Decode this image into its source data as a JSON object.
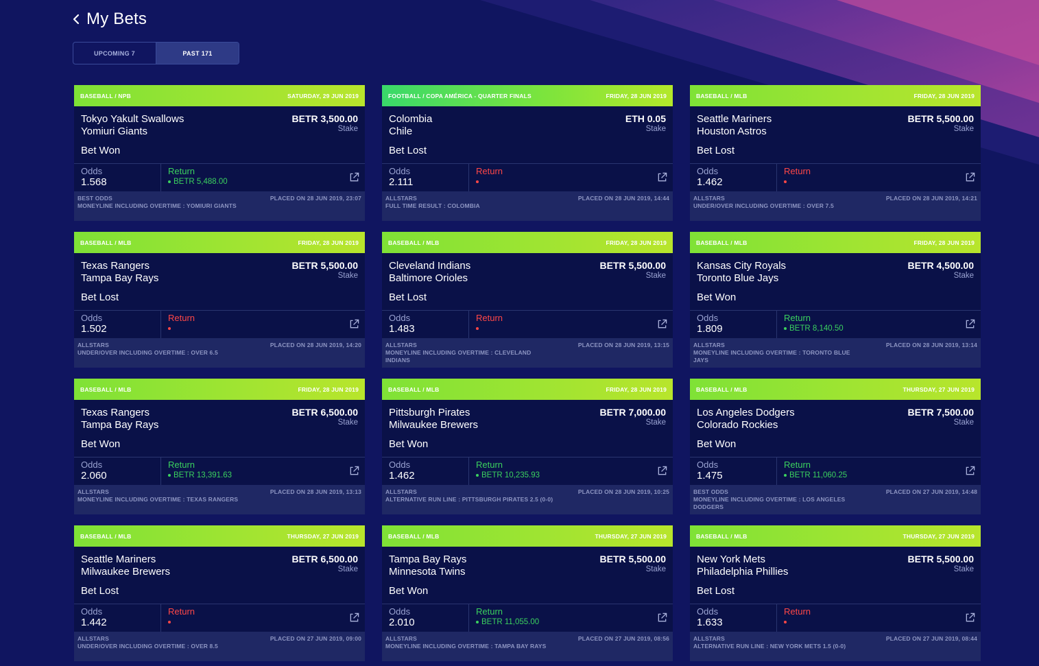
{
  "page": {
    "title": "My Bets",
    "back_icon": "chevron-left-icon"
  },
  "tabs": [
    {
      "label": "UPCOMING 7",
      "active": false
    },
    {
      "label": "PAST 171",
      "active": true
    }
  ],
  "colors": {
    "background": "#101560",
    "card": "#0a1148",
    "footer": "#1f2864",
    "won": "#3bd15e",
    "lost": "#ff4747",
    "accent_purple": "#9b3aa6"
  },
  "bets": [
    {
      "category": "BASEBALL / NPB",
      "date": "SATURDAY, 29 JUN 2019",
      "header_style": "lime",
      "team1": "Tokyo Yakult Swallows",
      "team2": "Yomiuri Giants",
      "stake": "BETR 3,500.00",
      "stake_label": "Stake",
      "result": "Bet Won",
      "status": "won",
      "odds_label": "Odds",
      "odds": "1.568",
      "return_label": "Return",
      "return_amount": "BETR 5,488.00",
      "source": "BEST ODDS",
      "market": "MONEYLINE INCLUDING OVERTIME : YOMIURI GIANTS",
      "placed": "PLACED ON 28 JUN 2019, 23:07"
    },
    {
      "category": "FOOTBALL / COPA AMÉRICA - QUARTER FINALS",
      "date": "FRIDAY, 28 JUN 2019",
      "header_style": "green",
      "team1": "Colombia",
      "team2": "Chile",
      "stake": "ETH 0.05",
      "stake_label": "Stake",
      "result": "Bet Lost",
      "status": "lost",
      "odds_label": "Odds",
      "odds": "2.111",
      "return_label": "Return",
      "return_amount": "",
      "source": "ALLSTARS",
      "market": "FULL TIME RESULT : COLOMBIA",
      "placed": "PLACED ON 28 JUN 2019, 14:44"
    },
    {
      "category": "BASEBALL / MLB",
      "date": "FRIDAY, 28 JUN 2019",
      "header_style": "lime",
      "team1": "Seattle Mariners",
      "team2": "Houston Astros",
      "stake": "BETR 5,500.00",
      "stake_label": "Stake",
      "result": "Bet Lost",
      "status": "lost",
      "odds_label": "Odds",
      "odds": "1.462",
      "return_label": "Return",
      "return_amount": "",
      "source": "ALLSTARS",
      "market": "UNDER/OVER INCLUDING OVERTIME : OVER 7.5",
      "placed": "PLACED ON 28 JUN 2019, 14:21"
    },
    {
      "category": "BASEBALL / MLB",
      "date": "FRIDAY, 28 JUN 2019",
      "header_style": "lime",
      "team1": "Texas Rangers",
      "team2": "Tampa Bay Rays",
      "stake": "BETR 5,500.00",
      "stake_label": "Stake",
      "result": "Bet Lost",
      "status": "lost",
      "odds_label": "Odds",
      "odds": "1.502",
      "return_label": "Return",
      "return_amount": "",
      "source": "ALLSTARS",
      "market": "UNDER/OVER INCLUDING OVERTIME : OVER 6.5",
      "placed": "PLACED ON 28 JUN 2019, 14:20"
    },
    {
      "category": "BASEBALL / MLB",
      "date": "FRIDAY, 28 JUN 2019",
      "header_style": "lime",
      "team1": "Cleveland Indians",
      "team2": "Baltimore Orioles",
      "stake": "BETR 5,500.00",
      "stake_label": "Stake",
      "result": "Bet Lost",
      "status": "lost",
      "odds_label": "Odds",
      "odds": "1.483",
      "return_label": "Return",
      "return_amount": "",
      "source": "ALLSTARS",
      "market": "MONEYLINE INCLUDING OVERTIME : CLEVELAND INDIANS",
      "placed": "PLACED ON 28 JUN 2019, 13:15"
    },
    {
      "category": "BASEBALL / MLB",
      "date": "FRIDAY, 28 JUN 2019",
      "header_style": "lime",
      "team1": "Kansas City Royals",
      "team2": "Toronto Blue Jays",
      "stake": "BETR 4,500.00",
      "stake_label": "Stake",
      "result": "Bet Won",
      "status": "won",
      "odds_label": "Odds",
      "odds": "1.809",
      "return_label": "Return",
      "return_amount": "BETR 8,140.50",
      "source": "ALLSTARS",
      "market": "MONEYLINE INCLUDING OVERTIME : TORONTO BLUE JAYS",
      "placed": "PLACED ON 28 JUN 2019, 13:14"
    },
    {
      "category": "BASEBALL / MLB",
      "date": "FRIDAY, 28 JUN 2019",
      "header_style": "lime",
      "team1": "Texas Rangers",
      "team2": "Tampa Bay Rays",
      "stake": "BETR 6,500.00",
      "stake_label": "Stake",
      "result": "Bet Won",
      "status": "won",
      "odds_label": "Odds",
      "odds": "2.060",
      "return_label": "Return",
      "return_amount": "BETR 13,391.63",
      "source": "ALLSTARS",
      "market": "MONEYLINE INCLUDING OVERTIME : TEXAS RANGERS",
      "placed": "PLACED ON 28 JUN 2019, 13:13"
    },
    {
      "category": "BASEBALL / MLB",
      "date": "FRIDAY, 28 JUN 2019",
      "header_style": "lime",
      "team1": "Pittsburgh Pirates",
      "team2": "Milwaukee Brewers",
      "stake": "BETR 7,000.00",
      "stake_label": "Stake",
      "result": "Bet Won",
      "status": "won",
      "odds_label": "Odds",
      "odds": "1.462",
      "return_label": "Return",
      "return_amount": "BETR 10,235.93",
      "source": "ALLSTARS",
      "market": "ALTERNATIVE RUN LINE : PITTSBURGH PIRATES 2.5 (0-0)",
      "placed": "PLACED ON 28 JUN 2019, 10:25"
    },
    {
      "category": "BASEBALL / MLB",
      "date": "THURSDAY, 27 JUN 2019",
      "header_style": "lime",
      "team1": "Los Angeles Dodgers",
      "team2": "Colorado Rockies",
      "stake": "BETR 7,500.00",
      "stake_label": "Stake",
      "result": "Bet Won",
      "status": "won",
      "odds_label": "Odds",
      "odds": "1.475",
      "return_label": "Return",
      "return_amount": "BETR 11,060.25",
      "source": "BEST ODDS",
      "market": "MONEYLINE INCLUDING OVERTIME : LOS ANGELES DODGERS",
      "placed": "PLACED ON 27 JUN 2019, 14:48"
    },
    {
      "category": "BASEBALL / MLB",
      "date": "THURSDAY, 27 JUN 2019",
      "header_style": "lime",
      "team1": "Seattle Mariners",
      "team2": "Milwaukee Brewers",
      "stake": "BETR 6,500.00",
      "stake_label": "Stake",
      "result": "Bet Lost",
      "status": "lost",
      "odds_label": "Odds",
      "odds": "1.442",
      "return_label": "Return",
      "return_amount": "",
      "source": "ALLSTARS",
      "market": "UNDER/OVER INCLUDING OVERTIME : OVER 8.5",
      "placed": "PLACED ON 27 JUN 2019, 09:00"
    },
    {
      "category": "BASEBALL / MLB",
      "date": "THURSDAY, 27 JUN 2019",
      "header_style": "lime",
      "team1": "Tampa Bay Rays",
      "team2": "Minnesota Twins",
      "stake": "BETR 5,500.00",
      "stake_label": "Stake",
      "result": "Bet Won",
      "status": "won",
      "odds_label": "Odds",
      "odds": "2.010",
      "return_label": "Return",
      "return_amount": "BETR 11,055.00",
      "source": "ALLSTARS",
      "market": "MONEYLINE INCLUDING OVERTIME : TAMPA BAY RAYS",
      "placed": "PLACED ON 27 JUN 2019, 08:56"
    },
    {
      "category": "BASEBALL / MLB",
      "date": "THURSDAY, 27 JUN 2019",
      "header_style": "lime",
      "team1": "New York Mets",
      "team2": "Philadelphia Phillies",
      "stake": "BETR 5,500.00",
      "stake_label": "Stake",
      "result": "Bet Lost",
      "status": "lost",
      "odds_label": "Odds",
      "odds": "1.633",
      "return_label": "Return",
      "return_amount": "",
      "source": "ALLSTARS",
      "market": "ALTERNATIVE RUN LINE : NEW YORK METS 1.5 (0-0)",
      "placed": "PLACED ON 27 JUN 2019, 08:44"
    }
  ]
}
